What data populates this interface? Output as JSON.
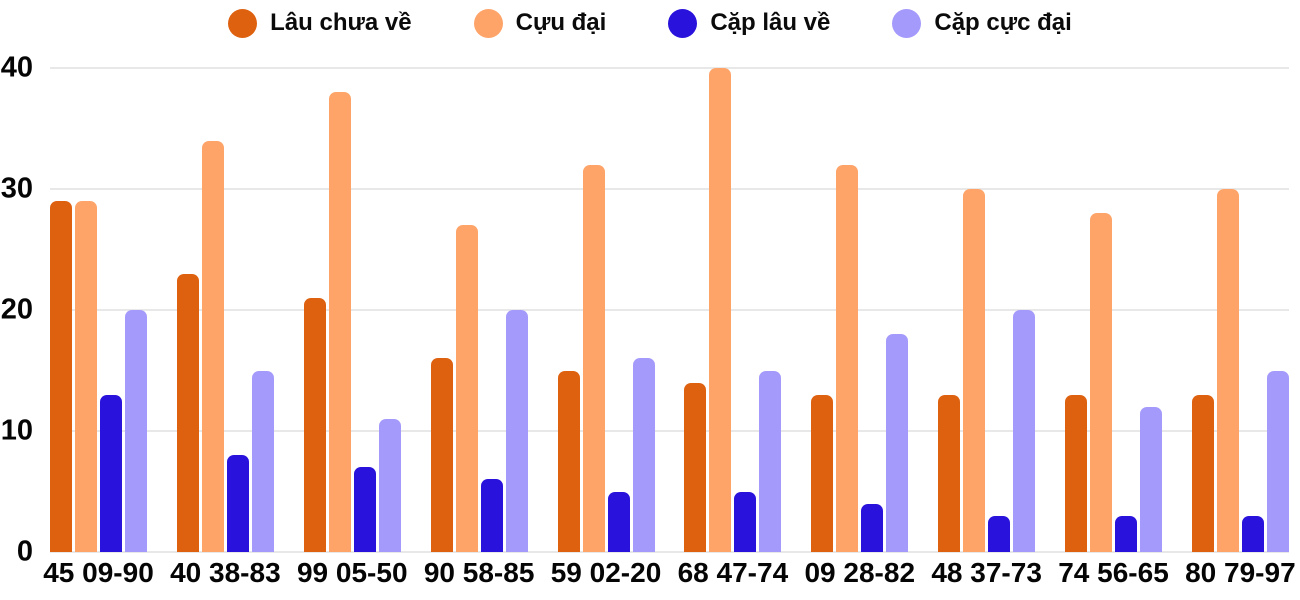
{
  "chart_data": {
    "type": "bar",
    "title": "",
    "xlabel": "",
    "ylabel": "",
    "ylim": [
      0,
      40
    ],
    "yticks": [
      0,
      10,
      20,
      30,
      40
    ],
    "grid": true,
    "legend_position": "top",
    "categories": [
      "45 09-90",
      "40 38-83",
      "99 05-50",
      "90 58-85",
      "59 02-20",
      "68 47-74",
      "09 28-82",
      "48 37-73",
      "74 56-65",
      "80 79-97"
    ],
    "series": [
      {
        "name": "Lâu chưa về",
        "color": "#de6110",
        "values": [
          29,
          23,
          21,
          16,
          15,
          14,
          13,
          13,
          13,
          13
        ]
      },
      {
        "name": "Cựu đại",
        "color": "#ffa469",
        "values": [
          29,
          34,
          38,
          27,
          32,
          40,
          32,
          30,
          28,
          30
        ]
      },
      {
        "name": "Cặp lâu về",
        "color": "#2912db",
        "values": [
          13,
          8,
          7,
          6,
          5,
          5,
          4,
          3,
          3,
          3
        ]
      },
      {
        "name": "Cặp cực đại",
        "color": "#a49afb",
        "values": [
          20,
          15,
          11,
          20,
          16,
          15,
          18,
          20,
          12,
          15
        ]
      }
    ],
    "colors": {
      "gridline": "#e8e8e8",
      "axis_text": "#050505",
      "background": "#ffffff"
    }
  }
}
